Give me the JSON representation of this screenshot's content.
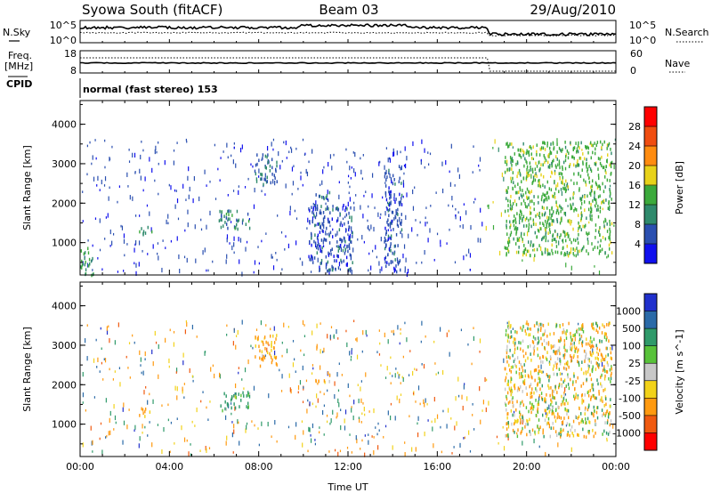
{
  "header": {
    "title": "Syowa South (fitACF)",
    "beam": "Beam 03",
    "date": "29/Aug/2010"
  },
  "panels": {
    "noise": {
      "left_label": "N.Sky",
      "right_label": "N.Search",
      "left_ticks": [
        "10^5",
        "10^0"
      ],
      "right_ticks": [
        "10^5",
        "10^0"
      ]
    },
    "freq": {
      "left_label_top": "Freq.",
      "left_label_bottom": "[MHz]",
      "right_label": "Nave",
      "left_ticks": [
        "18",
        "8"
      ],
      "right_ticks": [
        "60",
        "0"
      ]
    },
    "cpid": {
      "label": "CPID",
      "text": "normal (fast stereo) 153"
    }
  },
  "chart_data": [
    {
      "type": "heatmap",
      "quantity": "Power",
      "ylabel": "Slant Range [km]",
      "ylim": [
        180,
        4600
      ],
      "yticks": [
        "1000",
        "2000",
        "3000",
        "4000"
      ],
      "colorbar_label": "Power [dB]",
      "colorbar_ticks": [
        "4",
        "8",
        "12",
        "16",
        "20",
        "24",
        "28"
      ],
      "colorbar_colors": [
        "#1010ee",
        "#2a4fb0",
        "#2f8a6c",
        "#3caa3c",
        "#e8d21a",
        "#ff8c10",
        "#f04d10",
        "#ff0000"
      ],
      "colorbar_range": [
        0,
        32
      ],
      "scatter_regions": [
        {
          "t": [
            2.6,
            3.2
          ],
          "range": [
            1200,
            1450
          ],
          "value": 10
        },
        {
          "t": [
            6.2,
            7.6
          ],
          "range": [
            1380,
            1850
          ],
          "value": 10
        },
        {
          "t": [
            7.8,
            8.8
          ],
          "range": [
            2500,
            3300
          ],
          "value": 8
        },
        {
          "t": [
            10.5,
            11.2
          ],
          "range": [
            2100,
            2350
          ],
          "value": 8
        },
        {
          "t": [
            10.2,
            12.2
          ],
          "range": [
            300,
            2000
          ],
          "value": 6
        },
        {
          "t": [
            13.6,
            14.4
          ],
          "range": [
            300,
            3000
          ],
          "value": 6
        },
        {
          "t": [
            19,
            23.8
          ],
          "range": [
            700,
            3600
          ],
          "value": 14
        },
        {
          "t": [
            0,
            0.6
          ],
          "range": [
            200,
            900
          ],
          "value": 12
        }
      ]
    },
    {
      "type": "heatmap",
      "quantity": "Velocity",
      "xlabel": "Time UT",
      "ylabel": "Slant Range [km]",
      "xlim": [
        0,
        24
      ],
      "ylim": [
        180,
        4600
      ],
      "xticks": [
        "00:00",
        "04:00",
        "08:00",
        "12:00",
        "16:00",
        "20:00",
        "00:00"
      ],
      "yticks": [
        "1000",
        "2000",
        "3000",
        "4000"
      ],
      "colorbar_label": "Velocity [m s^-1]",
      "colorbar_ticks": [
        "1000",
        "500",
        "100",
        "25",
        "-25",
        "-100",
        "-500",
        "-1000"
      ],
      "colorbar_colors": [
        "#2030cc",
        "#2a6aa8",
        "#2f9a6a",
        "#58c23a",
        "#c8c8c8",
        "#f2d21a",
        "#ff9a10",
        "#f05a10",
        "#ff0000"
      ],
      "colorbar_range": [
        -1200,
        1200
      ],
      "scatter_regions": [
        {
          "t": [
            2.6,
            3.2
          ],
          "range": [
            1200,
            1450
          ],
          "value": -200
        },
        {
          "t": [
            6.2,
            7.6
          ],
          "range": [
            1380,
            1850
          ],
          "value": 150
        },
        {
          "t": [
            7.8,
            8.8
          ],
          "range": [
            2500,
            3300
          ],
          "value": -200
        },
        {
          "t": [
            10.5,
            11.2
          ],
          "range": [
            2100,
            2350
          ],
          "value": -200
        },
        {
          "t": [
            19,
            23.8
          ],
          "range": [
            700,
            3600
          ],
          "value": -50
        }
      ]
    }
  ],
  "colors": {
    "axis": "#000000",
    "background": "#ffffff"
  }
}
